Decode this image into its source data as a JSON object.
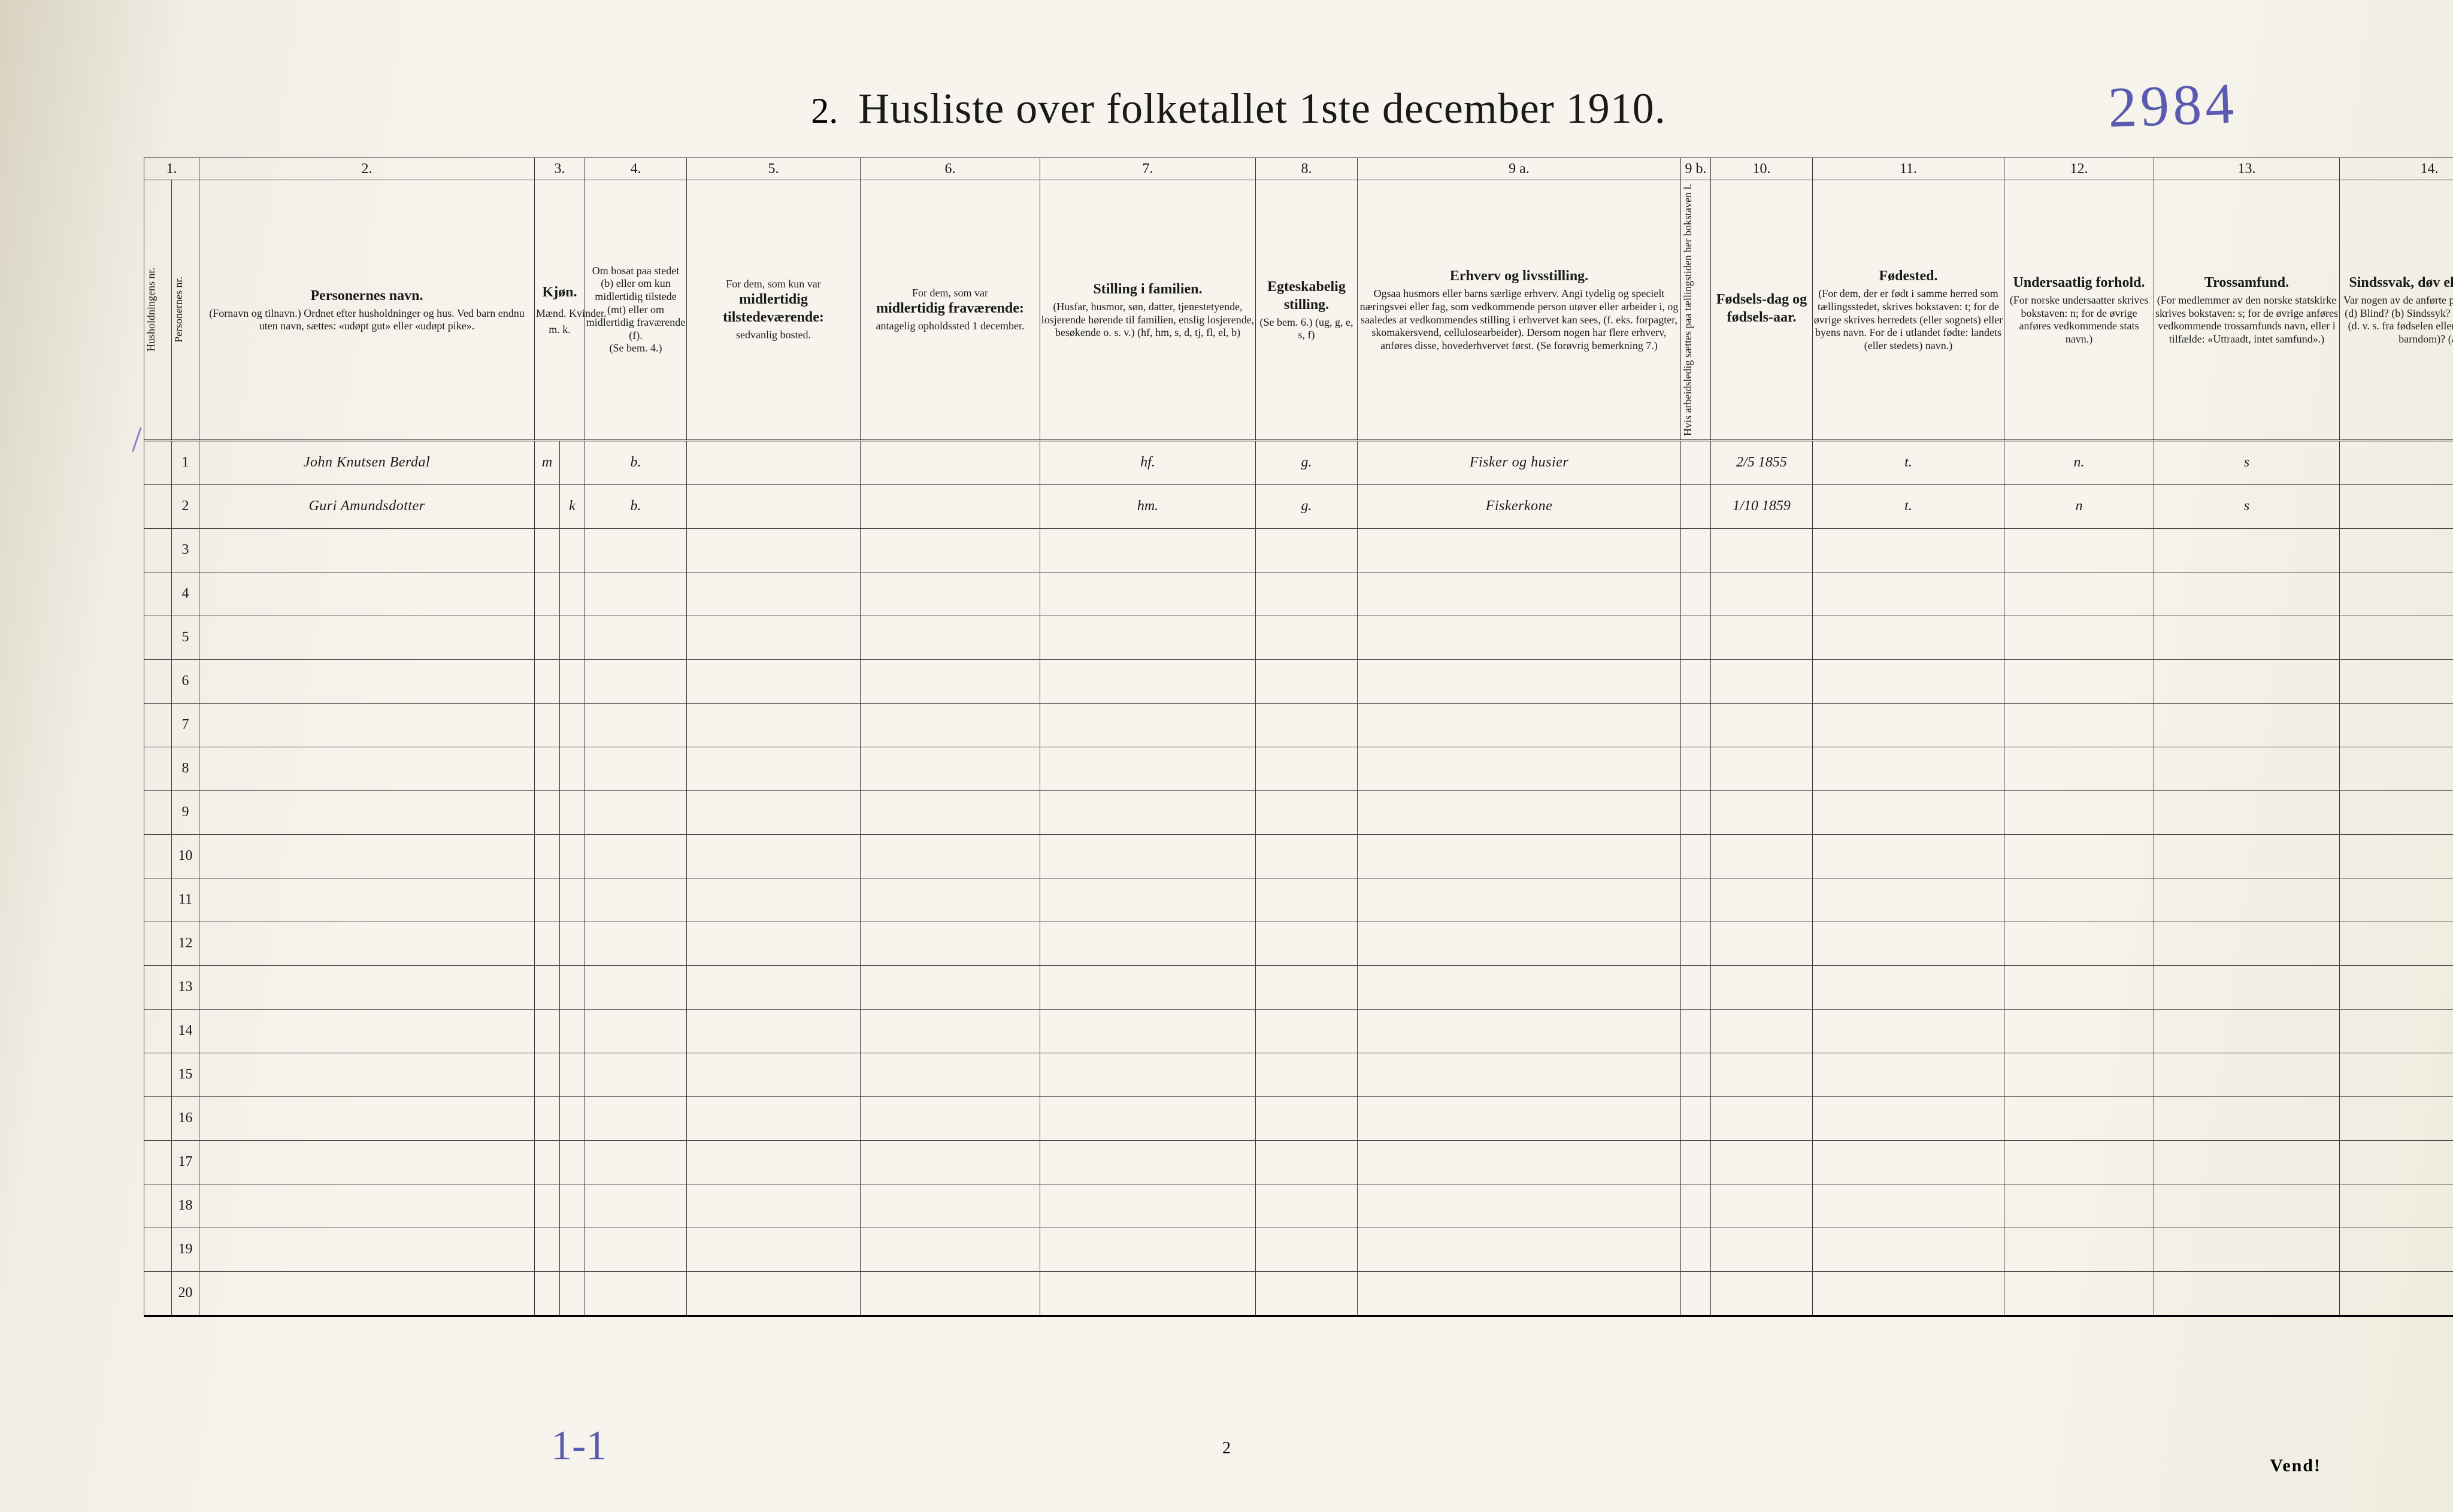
{
  "title": {
    "prefix": "2.",
    "text": "Husliste over folketallet 1ste december 1910.",
    "handwritten_topright": "2984"
  },
  "column_numbers": [
    "1.",
    "2.",
    "3.",
    "4.",
    "5.",
    "6.",
    "7.",
    "8.",
    "9 a.",
    "9 b.",
    "10.",
    "11.",
    "12.",
    "13.",
    "14."
  ],
  "headers": {
    "c1a": "Husholdningens nr.",
    "c1b": "Personernes nr.",
    "c2_bold": "Personernes navn.",
    "c2_sub": "(Fornavn og tilnavn.)\nOrdnet efter husholdninger og hus.\nVed barn endnu uten navn, sættes: «udøpt gut» eller «udøpt pike».",
    "c3_bold": "Kjøn.",
    "c3_sub": "Mænd.  Kvinder.",
    "c3_bot": "m.   k.",
    "c4_top": "Om bosat paa stedet (b) eller om kun midlertidig tilstede (mt) eller om midlertidig fraværende (f).",
    "c4_bot": "(Se bem. 4.)",
    "c5_top": "For dem, som kun var",
    "c5_bold": "midlertidig tilstedeværende:",
    "c5_sub": "sedvanlig bosted.",
    "c6_top": "For dem, som var",
    "c6_bold": "midlertidig fraværende:",
    "c6_sub": "antagelig opholdssted 1 december.",
    "c7_bold": "Stilling i familien.",
    "c7_sub": "(Husfar, husmor, søn, datter, tjenestetyende, losjerende hørende til familien, enslig losjerende, besøkende o. s. v.)\n(hf, hm, s, d, tj, fl, el, b)",
    "c8_bold": "Egteskabelig stilling.",
    "c8_sub": "(Se bem. 6.)\n(ug, g, e, s, f)",
    "c9a_bold": "Erhverv og livsstilling.",
    "c9a_sub": "Ogsaa husmors eller barns særlige erhverv.\nAngi tydelig og specielt næringsvei eller fag, som vedkommende person utøver eller arbeider i, og saaledes at vedkommendes stilling i erhvervet kan sees, (f. eks. forpagter, skomakersvend, cellulosearbeider). Dersom nogen har flere erhverv, anføres disse, hovederhvervet først.\n(Se forøvrig bemerkning 7.)",
    "c9b": "Hvis arbeidsledig sættes paa tællingstiden her bokstaven l.",
    "c10_bold": "Fødsels-dag og fødsels-aar.",
    "c11_bold": "Fødested.",
    "c11_sub": "(For dem, der er født i samme herred som tællingsstedet, skrives bokstaven: t; for de øvrige skrives herredets (eller sognets) eller byens navn. For de i utlandet fødte: landets (eller stedets) navn.)",
    "c12_bold": "Undersaatlig forhold.",
    "c12_sub": "(For norske undersaatter skrives bokstaven: n; for de øvrige anføres vedkommende stats navn.)",
    "c13_bold": "Trossamfund.",
    "c13_sub": "(For medlemmer av den norske statskirke skrives bokstaven: s; for de øvrige anføres vedkommende trossamfunds navn, eller i tilfælde: «Uttraadt, intet samfund».)",
    "c14_bold": "Sindssvak, døv eller blind.",
    "c14_sub": "Var nogen av de anførte personer:\nDøv?        (d)\nBlind?       (b)\nSindssyk?  (s)\nAandssvak (d. v. s. fra fødselen eller den tidligste barndom)? (a)"
  },
  "rows": [
    {
      "hnr": "",
      "pnr": "1",
      "name": "John Knutsen Berdal",
      "m": "m",
      "k": "",
      "res": "b.",
      "c5": "",
      "c6": "",
      "fam": "hf.",
      "egt": "g.",
      "erhv": "Fisker og husier",
      "c9b": "",
      "dob": "2/5 1855",
      "fsted": "t.",
      "under": "n.",
      "tros": "s",
      "sind": ""
    },
    {
      "hnr": "",
      "pnr": "2",
      "name": "Guri Amundsdotter",
      "m": "",
      "k": "k",
      "res": "b.",
      "c5": "",
      "c6": "",
      "fam": "hm.",
      "egt": "g.",
      "erhv": "Fiskerkone",
      "c9b": "",
      "dob": "1/10 1859",
      "fsted": "t.",
      "under": "n",
      "tros": "s",
      "sind": ""
    },
    {
      "pnr": "3"
    },
    {
      "pnr": "4"
    },
    {
      "pnr": "5"
    },
    {
      "pnr": "6"
    },
    {
      "pnr": "7"
    },
    {
      "pnr": "8"
    },
    {
      "pnr": "9"
    },
    {
      "pnr": "10"
    },
    {
      "pnr": "11"
    },
    {
      "pnr": "12"
    },
    {
      "pnr": "13"
    },
    {
      "pnr": "14"
    },
    {
      "pnr": "15"
    },
    {
      "pnr": "16"
    },
    {
      "pnr": "17"
    },
    {
      "pnr": "18"
    },
    {
      "pnr": "19"
    },
    {
      "pnr": "20"
    }
  ],
  "footer": {
    "page_number": "2",
    "vend": "Vend!",
    "hand_bottom": "1-1"
  },
  "colors": {
    "paper": "#f6f4ec",
    "ink": "#1a1a1a",
    "pencil_blue": "#5a5ab0",
    "rule": "#3a3a3a"
  }
}
